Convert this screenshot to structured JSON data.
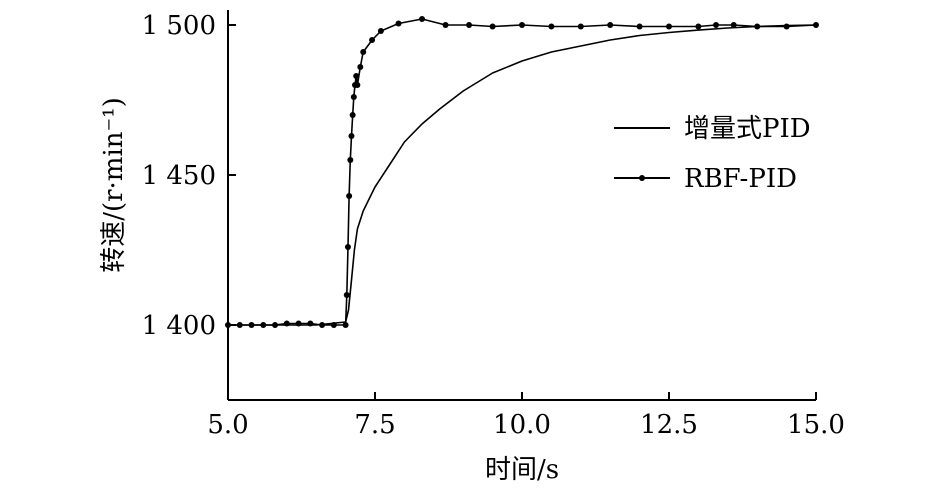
{
  "chart_data": {
    "type": "line",
    "xlabel": "时间/s",
    "ylabel": "转速/(r·min⁻¹)",
    "xlim": [
      5.0,
      15.0
    ],
    "ylim": [
      1375,
      1505
    ],
    "x_ticks": [
      5.0,
      7.5,
      10.0,
      12.5,
      15.0
    ],
    "x_tick_labels": [
      "5.0",
      "7.5",
      "10.0",
      "12.5",
      "15.0"
    ],
    "y_ticks": [
      1400,
      1450,
      1500
    ],
    "y_tick_labels": [
      "1 400",
      "1 450",
      "1 500"
    ],
    "grid": false,
    "legend_position": "right",
    "series": [
      {
        "name": "增量式PID",
        "marker": "none",
        "color": "#000000",
        "x": [
          5.0,
          5.5,
          6.0,
          6.5,
          7.0,
          7.05,
          7.1,
          7.15,
          7.2,
          7.3,
          7.5,
          7.7,
          8.0,
          8.3,
          8.6,
          9.0,
          9.5,
          10.0,
          10.5,
          11.0,
          11.5,
          12.0,
          12.5,
          13.0,
          13.5,
          14.0,
          14.5,
          15.0
        ],
        "y": [
          1400,
          1400,
          1400,
          1400,
          1401,
          1405,
          1415,
          1425,
          1432,
          1438,
          1446,
          1452,
          1461,
          1467,
          1472,
          1478,
          1484,
          1488,
          1491,
          1493,
          1495,
          1496.5,
          1497.5,
          1498.3,
          1499,
          1499.5,
          1499.8,
          1500
        ]
      },
      {
        "name": "RBF-PID",
        "marker": "circle",
        "color": "#000000",
        "x": [
          5.0,
          5.2,
          5.4,
          5.6,
          5.8,
          6.0,
          6.2,
          6.4,
          6.6,
          6.8,
          7.0,
          7.02,
          7.04,
          7.06,
          7.08,
          7.1,
          7.12,
          7.14,
          7.16,
          7.18,
          7.2,
          7.25,
          7.3,
          7.45,
          7.6,
          7.9,
          8.3,
          8.7,
          9.1,
          9.5,
          10.0,
          10.5,
          11.0,
          11.5,
          12.0,
          12.5,
          13.0,
          13.3,
          13.6,
          14.0,
          14.5,
          15.0
        ],
        "y": [
          1400,
          1400,
          1400,
          1400,
          1400,
          1400.5,
          1400.5,
          1400.5,
          1400,
          1400,
          1400,
          1410,
          1426,
          1443,
          1455,
          1463,
          1470,
          1476,
          1480,
          1483,
          1480,
          1486,
          1491,
          1495,
          1498,
          1500.5,
          1502,
          1500,
          1500,
          1499.5,
          1500,
          1499.5,
          1499.5,
          1500,
          1499.5,
          1499.5,
          1499.5,
          1500,
          1500,
          1499.5,
          1499.5,
          1500
        ]
      }
    ]
  }
}
